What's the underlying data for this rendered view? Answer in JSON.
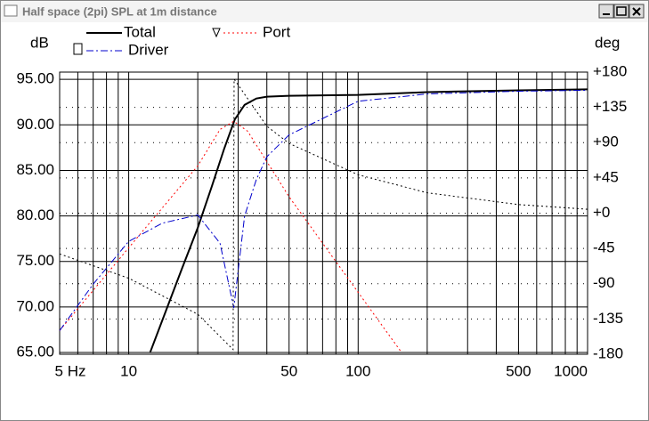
{
  "window_title": "Half space (2pi) SPL at 1m distance",
  "chart_data": {
    "type": "line",
    "ylabel": "dB",
    "y2label": "deg",
    "xscale": "log",
    "xlim": [
      5,
      1000
    ],
    "xticks": [
      {
        "value": 5,
        "label": "5 Hz"
      },
      10,
      50,
      100,
      500,
      1000
    ],
    "xminorticks": [
      6,
      7,
      8,
      9,
      20,
      30,
      40,
      60,
      70,
      80,
      90,
      200,
      300,
      400,
      600,
      700,
      800,
      900
    ],
    "ylim": [
      64.8,
      95.8
    ],
    "yticks": [
      {
        "value": 65,
        "label": "65.00"
      },
      {
        "value": 70,
        "label": "70.00"
      },
      {
        "value": 75,
        "label": "75.00"
      },
      {
        "value": 80,
        "label": "80.00"
      },
      {
        "value": 85,
        "label": "85.00"
      },
      {
        "value": 90,
        "label": "90.00"
      },
      {
        "value": 95,
        "label": "95.00"
      }
    ],
    "y2lim": [
      -180,
      180
    ],
    "y2ticks": [
      {
        "value": 180,
        "label": "+180"
      },
      {
        "value": 135,
        "label": "+135"
      },
      {
        "value": 90,
        "label": "+90"
      },
      {
        "value": 45,
        "label": "+45"
      },
      {
        "value": 0,
        "label": "+0"
      },
      -45,
      -90,
      -135,
      -180
    ],
    "grid": true,
    "series": [
      {
        "name": "Total",
        "color": "#000000",
        "dash": "solid",
        "x": [
          12.4,
          15,
          17,
          20,
          23,
          26,
          29,
          32,
          36,
          40,
          50,
          100,
          200,
          500,
          1000
        ],
        "values": [
          65,
          70.5,
          74.1,
          78.7,
          83.2,
          87.3,
          90.6,
          92.2,
          92.9,
          93.1,
          93.2,
          93.3,
          93.6,
          93.8,
          93.9
        ]
      },
      {
        "name": "Port",
        "color": "#ff0000",
        "dash": "dotted",
        "x": [
          5,
          10,
          20,
          25,
          28.7,
          33,
          50,
          100,
          154.6
        ],
        "values": [
          67.4,
          76.5,
          85.5,
          89.5,
          90.4,
          89.3,
          82.1,
          71.6,
          65
        ]
      },
      {
        "name": "Driver",
        "color": "#0000cc",
        "dash": "dashdot",
        "x": [
          5,
          7,
          10,
          14,
          20,
          25,
          28.7,
          32,
          36,
          40,
          50,
          100,
          200,
          500,
          1000
        ],
        "values": [
          67.4,
          72.5,
          77.2,
          79.2,
          80.1,
          77,
          69.9,
          80,
          84,
          86.5,
          88.9,
          92.6,
          93.4,
          93.7,
          93.8
        ]
      },
      {
        "color": "#000000",
        "dash": "dotted",
        "axis": "y2",
        "x": [
          5,
          10,
          20,
          28.5,
          28.8,
          40,
          50,
          100,
          200,
          500,
          1000
        ],
        "values": [
          -52,
          -83,
          -129,
          -174,
          171,
          111,
          89,
          49,
          26,
          11,
          5
        ]
      }
    ]
  }
}
